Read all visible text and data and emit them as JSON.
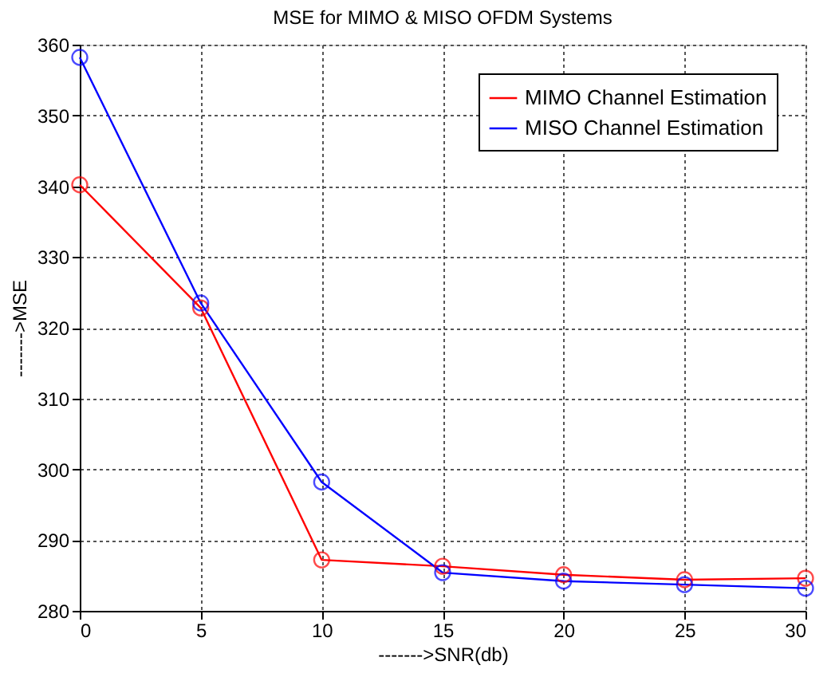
{
  "chart_data": {
    "type": "line",
    "title": "MSE for MIMO & MISO OFDM Systems",
    "xlabel": "------->SNR(db)",
    "ylabel": "------->MSE",
    "x": [
      0,
      5,
      10,
      15,
      20,
      25,
      30
    ],
    "series": [
      {
        "name": "MIMO Channel Estimation",
        "color": "#ff0000",
        "values": [
          340.2,
          322.8,
          287.2,
          286.3,
          285.1,
          284.4,
          284.6
        ]
      },
      {
        "name": "MISO Channel Estimation",
        "color": "#0000ff",
        "values": [
          358.2,
          323.5,
          298.2,
          285.4,
          284.2,
          283.7,
          283.2
        ]
      }
    ],
    "xlim": [
      0,
      30
    ],
    "xticks": [
      0,
      5,
      10,
      15,
      20,
      25,
      30
    ],
    "ylim": [
      280,
      360
    ],
    "yticks": [
      280,
      290,
      300,
      310,
      320,
      330,
      340,
      350,
      360
    ],
    "grid": true,
    "legend": "top right",
    "marker": "circle",
    "line_style": "solid"
  }
}
